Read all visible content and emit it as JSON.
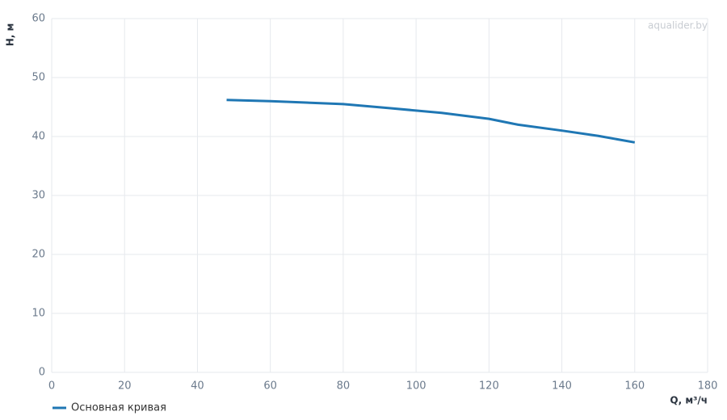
{
  "chart_data": {
    "type": "line",
    "x_label": "Q, м³/ч",
    "y_label": "H, м",
    "watermark": "aqualider.by",
    "x": [
      48,
      60,
      80,
      93,
      107,
      120,
      128,
      140,
      150,
      160
    ],
    "series": [
      {
        "name": "Основная кривая",
        "color": "#1f77b4",
        "values": [
          46.2,
          46,
          45.5,
          44.8,
          44,
          43,
          42,
          41,
          40.1,
          39
        ]
      }
    ],
    "xlim": [
      0,
      180
    ],
    "xticks": [
      0,
      20,
      40,
      60,
      80,
      100,
      120,
      140,
      160,
      180
    ],
    "ylim": [
      0,
      60
    ],
    "yticks": [
      0,
      10,
      20,
      30,
      40,
      50,
      60
    ],
    "grid": true
  }
}
